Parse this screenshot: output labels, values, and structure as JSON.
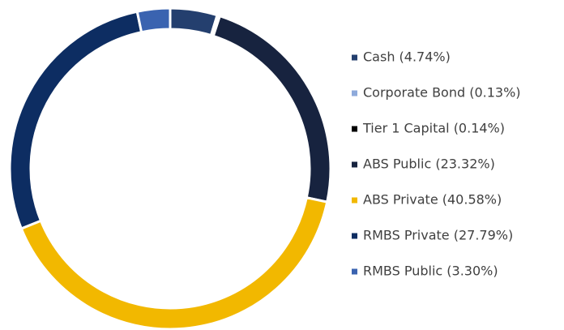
{
  "chart_data": {
    "type": "donut",
    "categories": [
      "Cash (4.74%)",
      "Corporate Bond (0.13%)",
      "Tier 1 Capital (0.14%)",
      "ABS Public (23.32%)",
      "ABS Private (40.58%)",
      "RMBS Private (27.79%)",
      "RMBS Public (3.30%)"
    ],
    "values": [
      4.74,
      0.13,
      0.14,
      23.32,
      40.58,
      27.79,
      3.3
    ],
    "colors": [
      "#243f6e",
      "#8eaadb",
      "#000000",
      "#17233f",
      "#f2b800",
      "#0d2d62",
      "#3a63b0"
    ],
    "legend": "right"
  }
}
